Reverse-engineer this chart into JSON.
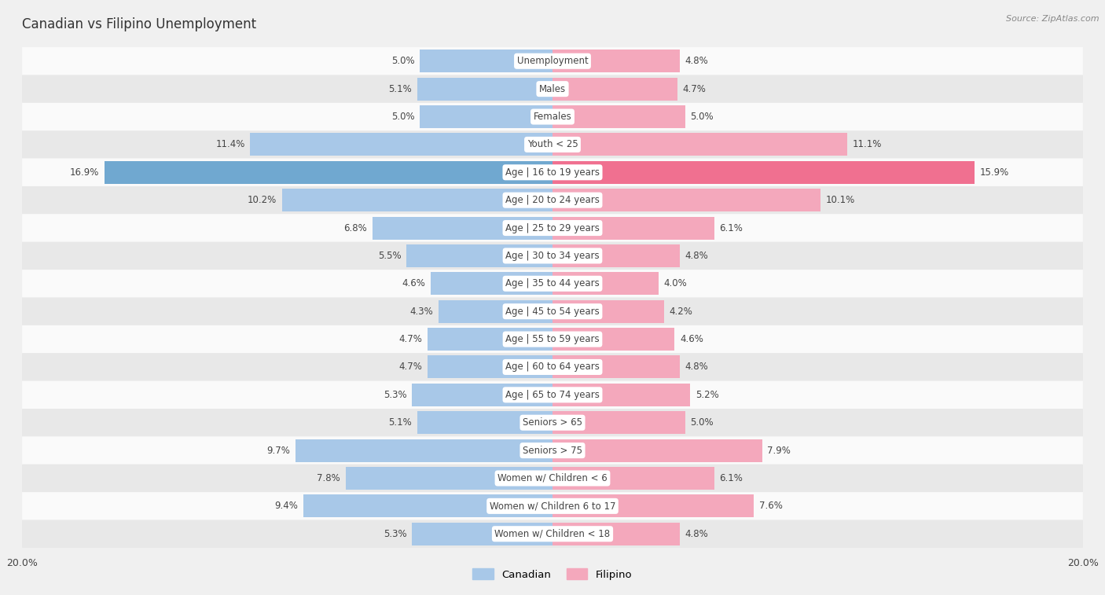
{
  "title": "Canadian vs Filipino Unemployment",
  "source": "Source: ZipAtlas.com",
  "categories": [
    "Unemployment",
    "Males",
    "Females",
    "Youth < 25",
    "Age | 16 to 19 years",
    "Age | 20 to 24 years",
    "Age | 25 to 29 years",
    "Age | 30 to 34 years",
    "Age | 35 to 44 years",
    "Age | 45 to 54 years",
    "Age | 55 to 59 years",
    "Age | 60 to 64 years",
    "Age | 65 to 74 years",
    "Seniors > 65",
    "Seniors > 75",
    "Women w/ Children < 6",
    "Women w/ Children 6 to 17",
    "Women w/ Children < 18"
  ],
  "canadian": [
    5.0,
    5.1,
    5.0,
    11.4,
    16.9,
    10.2,
    6.8,
    5.5,
    4.6,
    4.3,
    4.7,
    4.7,
    5.3,
    5.1,
    9.7,
    7.8,
    9.4,
    5.3
  ],
  "filipino": [
    4.8,
    4.7,
    5.0,
    11.1,
    15.9,
    10.1,
    6.1,
    4.8,
    4.0,
    4.2,
    4.6,
    4.8,
    5.2,
    5.0,
    7.9,
    6.1,
    7.6,
    4.8
  ],
  "canadian_color": "#a8c8e8",
  "filipino_color": "#f4a8bc",
  "highlight_canadian_color": "#70a8d0",
  "highlight_filipino_color": "#f07090",
  "max_val": 20.0,
  "bg_color": "#f0f0f0",
  "row_color_light": "#fafafa",
  "row_color_dark": "#e8e8e8",
  "label_color": "#444444",
  "title_color": "#333333",
  "label_fontsize": 8.5,
  "value_fontsize": 8.5
}
